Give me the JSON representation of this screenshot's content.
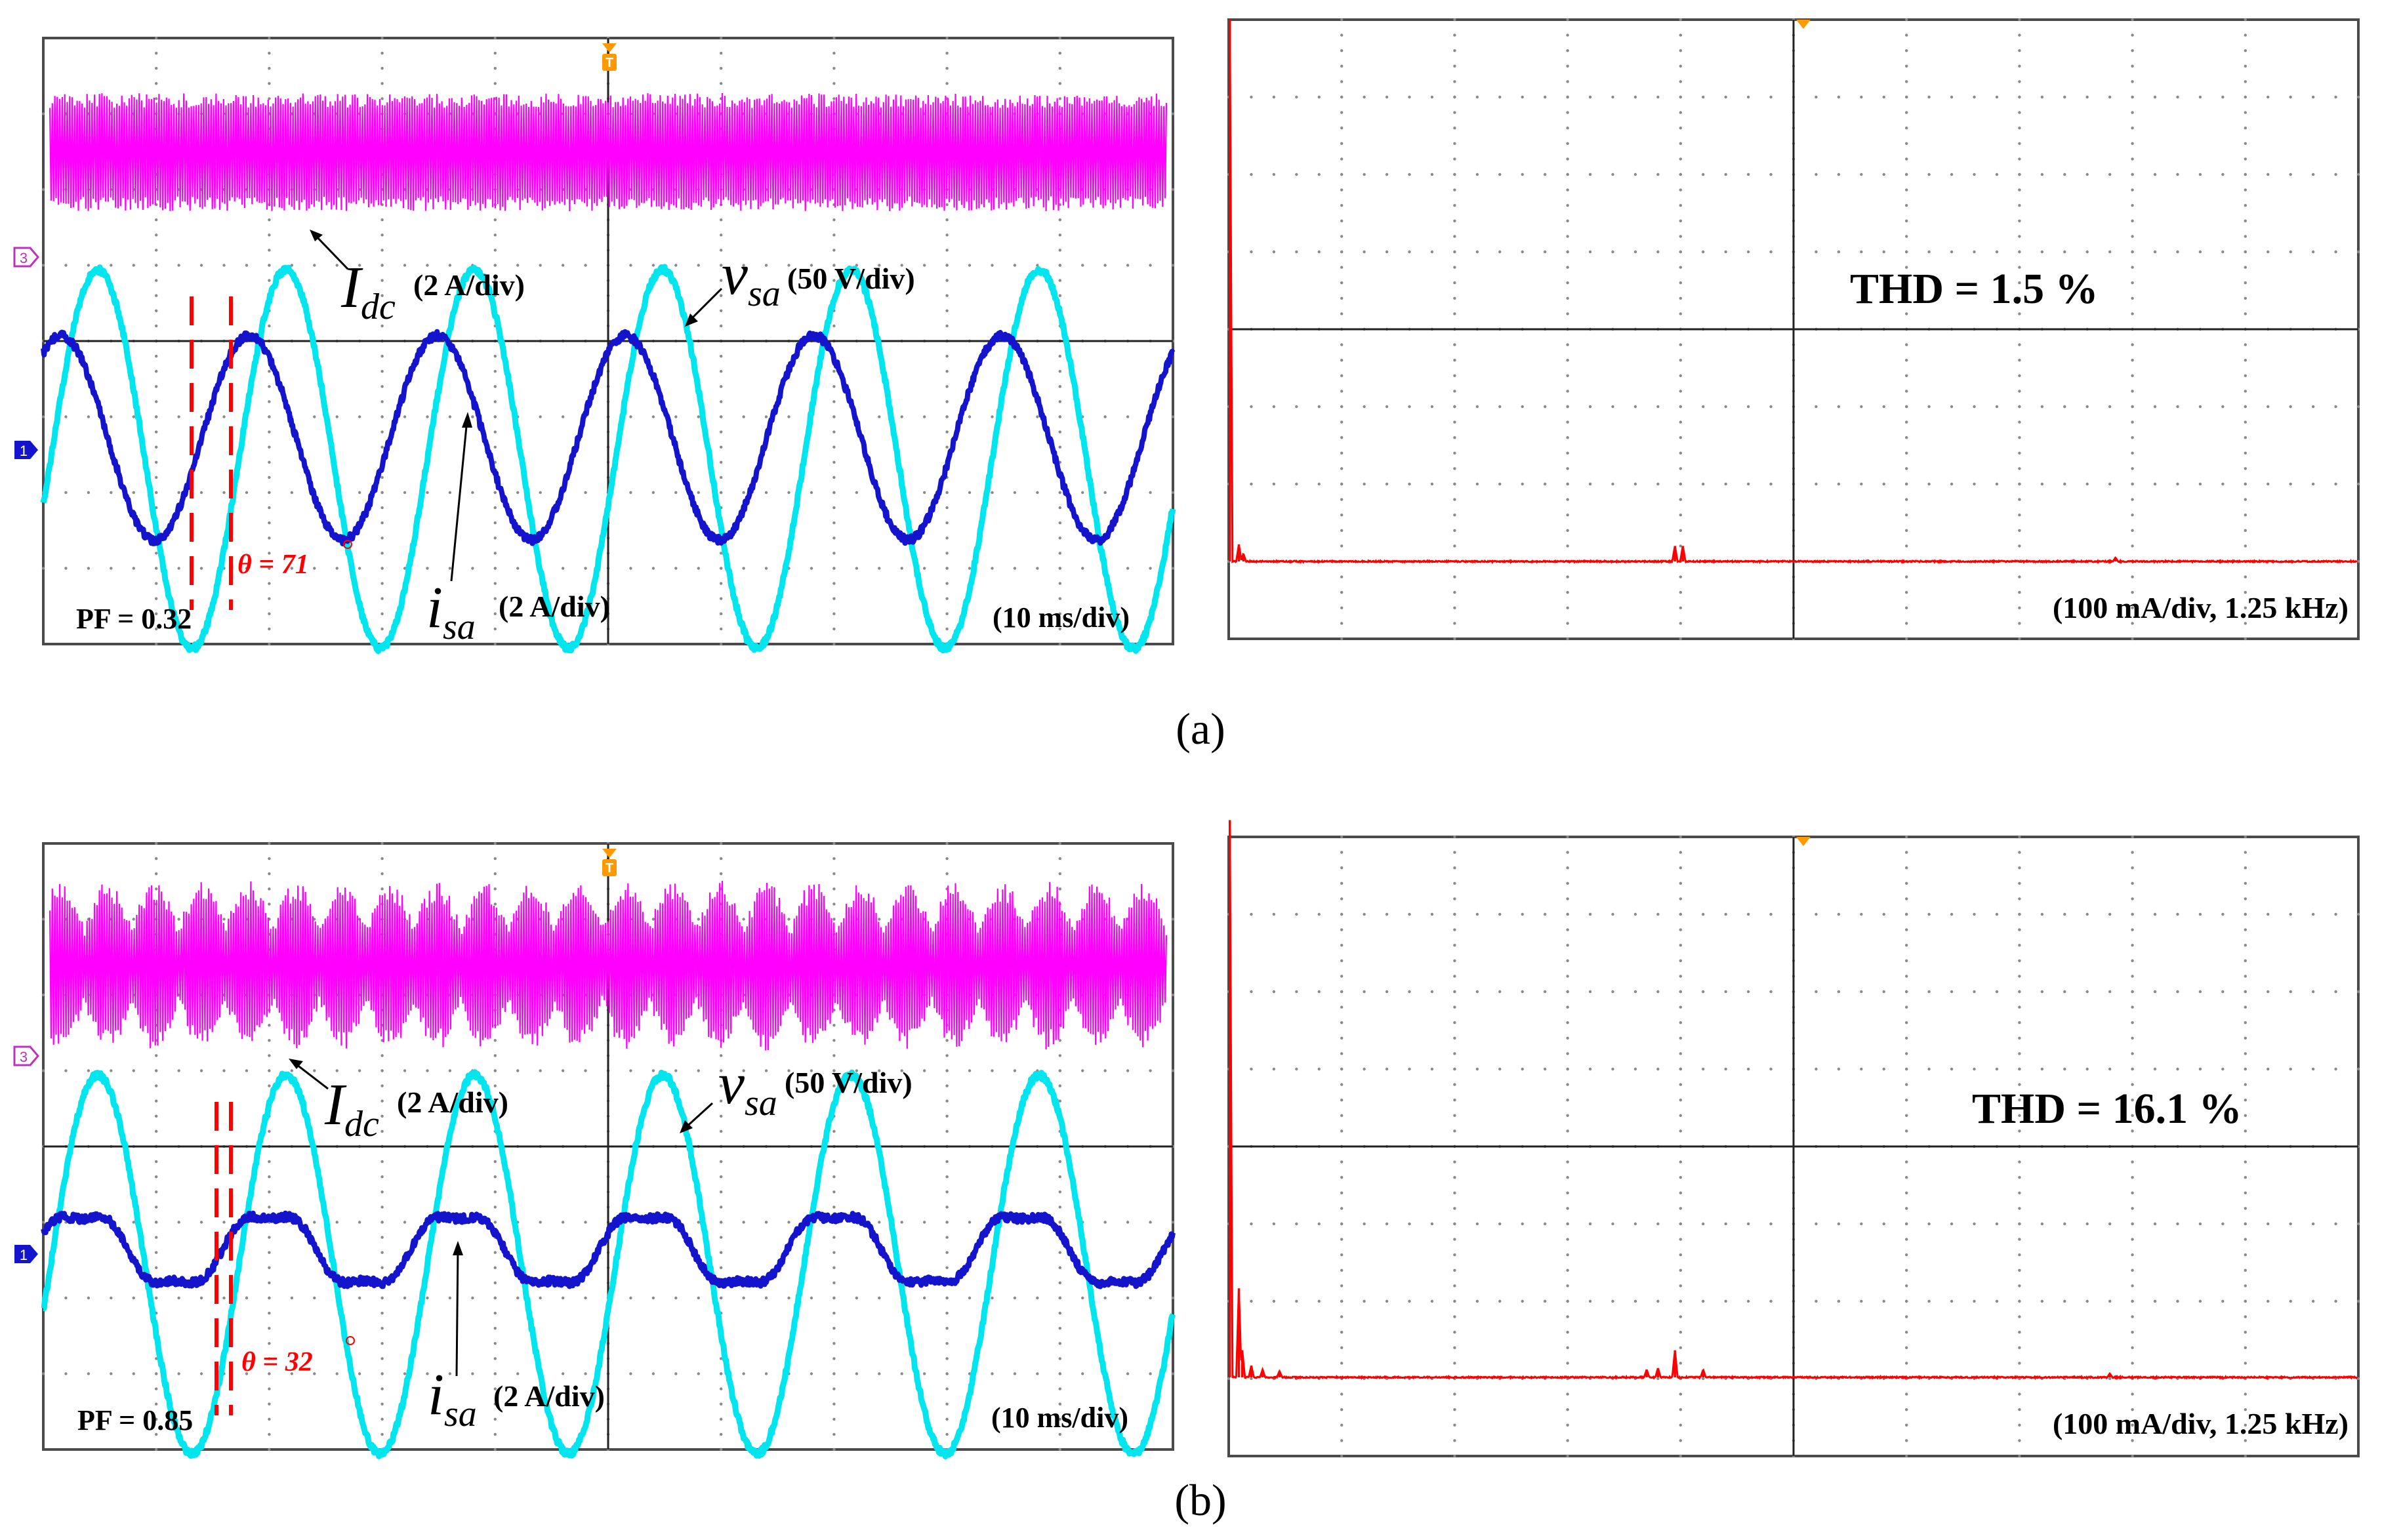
{
  "colors": {
    "idc": "#ff00ff",
    "vsa": "#00e5ee",
    "isa": "#1414cc",
    "marker": "#ff0000",
    "fft": "#ff0000",
    "trigger": "#ff9900"
  },
  "chart_data": [
    {
      "type": "line",
      "panel": "a",
      "view": "time-domain",
      "series": [
        {
          "name": "I_dc",
          "scale": "2 A/div"
        },
        {
          "name": "v_sa",
          "scale": "50 V/div"
        },
        {
          "name": "i_sa",
          "scale": "2 A/div"
        }
      ],
      "labels": {
        "idc_symbol": "I",
        "idc_sub": "dc",
        "idc_scale": "(2 A/div)",
        "vsa_symbol": "v",
        "vsa_sub": "sa",
        "vsa_scale": "(50 V/div)",
        "isa_symbol": "i",
        "isa_sub": "sa",
        "isa_scale": "(2 A/div)",
        "theta": "θ = 71",
        "pf": "PF = 0.32",
        "timebase": "(10 ms/div)",
        "ch3_marker": "3",
        "ch1_marker": "1",
        "trigger_marker": "T"
      },
      "cycles_shown": 6,
      "vsa_amplitude_div": 2.5,
      "isa_amplitude_div": 1.35,
      "phase_deg": 71,
      "power_factor": 0.32
    },
    {
      "type": "line",
      "panel": "a",
      "view": "spectrum",
      "labels": {
        "thd": "THD = 1.5 %",
        "scale": "(100 mA/div, 1.25 kHz)"
      },
      "thd_percent": 1.5,
      "peaks_div": [
        {
          "freq_div": 0.01,
          "amp_div": 7.0
        },
        {
          "freq_div": 0.09,
          "amp_div": 0.22
        },
        {
          "freq_div": 0.13,
          "amp_div": 0.1
        },
        {
          "freq_div": 3.95,
          "amp_div": 0.2
        },
        {
          "freq_div": 4.02,
          "amp_div": 0.2
        },
        {
          "freq_div": 7.85,
          "amp_div": 0.05
        }
      ]
    },
    {
      "type": "line",
      "panel": "b",
      "view": "time-domain",
      "series": [
        {
          "name": "I_dc",
          "scale": "2 A/div"
        },
        {
          "name": "v_sa",
          "scale": "50 V/div"
        },
        {
          "name": "i_sa",
          "scale": "2 A/div"
        }
      ],
      "labels": {
        "idc_symbol": "I",
        "idc_sub": "dc",
        "idc_scale": "(2 A/div)",
        "vsa_symbol": "v",
        "vsa_sub": "sa",
        "vsa_scale": "(50 V/div)",
        "isa_symbol": "i",
        "isa_sub": "sa",
        "isa_scale": "(2 A/div)",
        "theta": "θ = 32",
        "pf": "PF = 0.85",
        "timebase": "(10 ms/div)",
        "ch3_marker": "3",
        "ch1_marker": "1",
        "trigger_marker": "T"
      },
      "cycles_shown": 6,
      "vsa_amplitude_div": 2.5,
      "isa_amplitude_div": 0.5,
      "phase_deg": 32,
      "power_factor": 0.85
    },
    {
      "type": "line",
      "panel": "b",
      "view": "spectrum",
      "labels": {
        "thd": "THD = 16.1 %",
        "scale": "(100 mA/div, 1.25 kHz)"
      },
      "thd_percent": 16.1,
      "peaks_div": [
        {
          "freq_div": 0.01,
          "amp_div": 7.2
        },
        {
          "freq_div": 0.09,
          "amp_div": 1.15
        },
        {
          "freq_div": 0.12,
          "amp_div": 0.35
        },
        {
          "freq_div": 0.2,
          "amp_div": 0.15
        },
        {
          "freq_div": 0.3,
          "amp_div": 0.1
        },
        {
          "freq_div": 0.45,
          "amp_div": 0.08
        },
        {
          "freq_div": 3.7,
          "amp_div": 0.1
        },
        {
          "freq_div": 3.8,
          "amp_div": 0.12
        },
        {
          "freq_div": 3.95,
          "amp_div": 0.35
        },
        {
          "freq_div": 4.2,
          "amp_div": 0.1
        },
        {
          "freq_div": 7.8,
          "amp_div": 0.05
        }
      ]
    }
  ],
  "captions": {
    "a": "(a)",
    "b": "(b)"
  }
}
